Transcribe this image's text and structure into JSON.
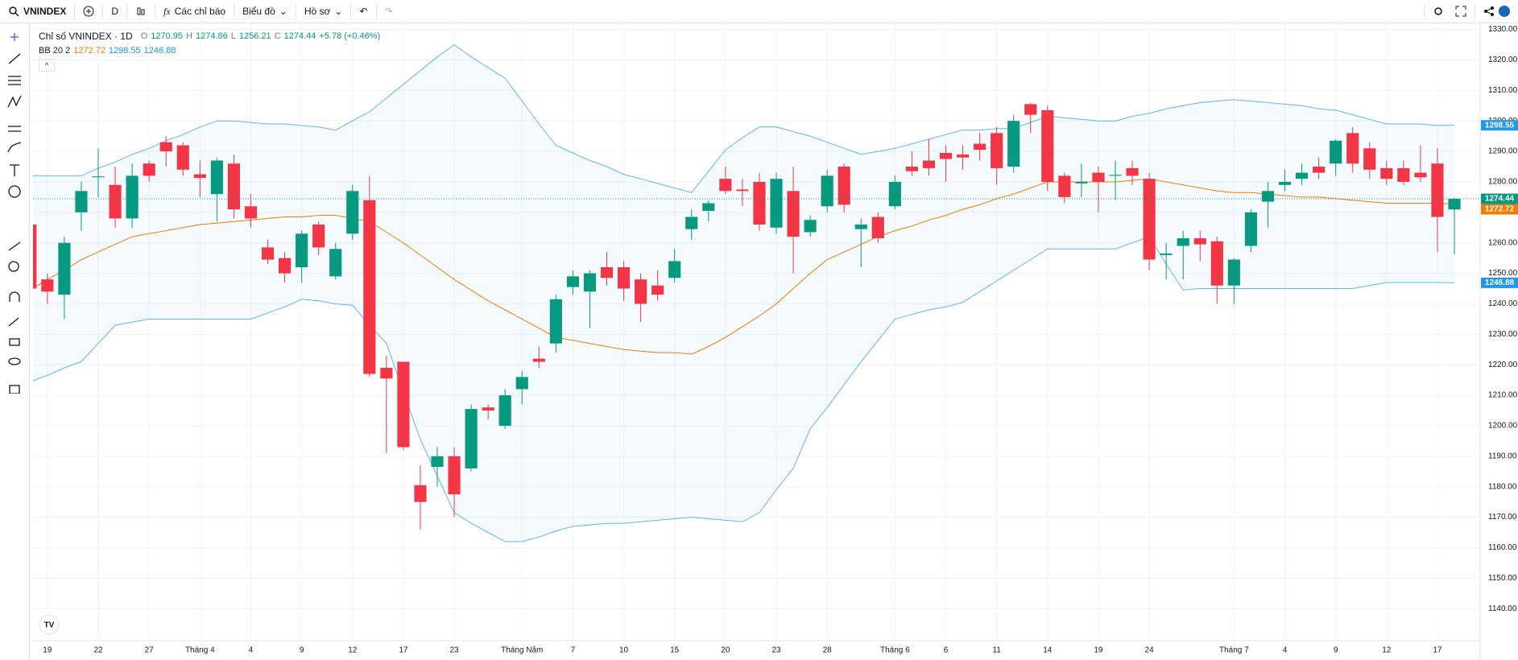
{
  "toolbar": {
    "symbol": "VNINDEX",
    "interval": "D",
    "indicators": "Các chỉ báo",
    "chart": "Biểu đồ",
    "profile": "Hồ sơ"
  },
  "chart_data": {
    "type": "candlestick",
    "title": "Chỉ số VNINDEX · 1D",
    "ohlc_labels": [
      "O",
      "H",
      "L",
      "C"
    ],
    "change": "+5.78 (+0.46%)",
    "categories": [
      null,
      "19",
      null,
      null,
      "22",
      null,
      null,
      "27",
      null,
      null,
      "Tháng 4",
      null,
      null,
      "4",
      null,
      null,
      "9",
      null,
      null,
      "12",
      null,
      null,
      "17",
      null,
      null,
      "23",
      null,
      null,
      null,
      "Tháng Năm",
      null,
      null,
      "7",
      null,
      null,
      "10",
      null,
      null,
      "15",
      null,
      null,
      "20",
      null,
      null,
      "23",
      null,
      null,
      "28",
      null,
      null,
      null,
      "Tháng 6",
      null,
      null,
      "6",
      null,
      null,
      "11",
      null,
      null,
      "14",
      null,
      null,
      "19",
      null,
      null,
      "24",
      null,
      null,
      null,
      null,
      "Tháng 7",
      null,
      null,
      "4",
      null,
      null,
      "9",
      null,
      null,
      "12",
      null,
      null,
      "17",
      null
    ],
    "open": [
      1266,
      1248,
      1243,
      1270,
      1281.5,
      1279,
      1268,
      1286,
      1293,
      1292,
      1282.5,
      1276,
      1286,
      1272,
      1258.5,
      1255,
      1252,
      1266,
      1249,
      1263,
      1274,
      1219,
      1221,
      1180.5,
      1186.5,
      1190,
      1186,
      1206,
      1200,
      1212,
      1222,
      1227,
      1245.5,
      1244,
      1252,
      1252,
      1248,
      1246,
      1248.5,
      1264.5,
      1270.5,
      1281,
      1277.5,
      1280,
      1265,
      1277,
      1263.5,
      1272,
      1285,
      1264.5,
      1268.5,
      1272,
      1285,
      1287,
      1289.5,
      1289,
      1292.5,
      1296,
      1285,
      1305.5,
      1303.5,
      1282,
      1279.5,
      1283,
      1282,
      1284.5,
      1281,
      1256,
      1259,
      1261.5,
      1260.5,
      1246,
      1259,
      1273.5,
      1279,
      1281,
      1285,
      1286,
      1296,
      1291,
      1284.5,
      1284.5,
      1283,
      1286,
      1270.95
    ],
    "high": [
      1266,
      1250,
      1262,
      1280,
      1291,
      1285,
      1286,
      1287,
      1295,
      1293,
      1287,
      1288,
      1289,
      1276,
      1261,
      1257,
      1264,
      1267,
      1260,
      1279,
      1282,
      1223,
      1221,
      1187,
      1193,
      1193,
      1207,
      1207,
      1212,
      1218,
      1226,
      1243,
      1251,
      1251,
      1257,
      1254,
      1250,
      1251,
      1258,
      1271,
      1274,
      1285,
      1281,
      1283,
      1283,
      1285,
      1269,
      1284,
      1286,
      1268,
      1270,
      1282,
      1290,
      1294,
      1292,
      1292,
      1296,
      1298,
      1302,
      1306,
      1305,
      1283,
      1286,
      1285,
      1287,
      1287,
      1283,
      1260,
      1264,
      1264,
      1262,
      1255,
      1271,
      1280,
      1284,
      1286,
      1288,
      1294,
      1298,
      1293,
      1287,
      1287,
      1292,
      1291,
      1274.86
    ],
    "low": [
      1243,
      1240,
      1235,
      1264,
      1275,
      1265,
      1265,
      1280,
      1285,
      1282,
      1275,
      1267,
      1268,
      1265,
      1253,
      1247,
      1247,
      1256,
      1248,
      1261,
      1216,
      1191,
      1192,
      1166,
      1180,
      1170,
      1185,
      1202,
      1199,
      1207,
      1219,
      1224,
      1243,
      1232,
      1246,
      1241,
      1234,
      1241,
      1247,
      1261,
      1267,
      1276,
      1272,
      1264,
      1263,
      1250,
      1262,
      1270,
      1270,
      1252,
      1260,
      1271,
      1282,
      1282,
      1280,
      1284,
      1287,
      1279,
      1283,
      1296,
      1277,
      1273,
      1275,
      1270,
      1274,
      1279,
      1251,
      1248,
      1248,
      1254,
      1240,
      1240,
      1257,
      1265,
      1277,
      1279,
      1281,
      1282,
      1283,
      1281,
      1279,
      1279,
      1280,
      1257,
      1256.21
    ],
    "close": [
      1245,
      1244,
      1260,
      1277,
      1281.8,
      1268,
      1282,
      1282,
      1290,
      1284,
      1281.3,
      1287,
      1271,
      1268,
      1254.5,
      1250,
      1263,
      1258.5,
      1258,
      1277,
      1217,
      1215.5,
      1193,
      1175,
      1190,
      1177.5,
      1205.5,
      1205,
      1210,
      1216,
      1221,
      1241.5,
      1249,
      1250,
      1248.5,
      1245,
      1240,
      1243,
      1254,
      1268.5,
      1273,
      1277,
      1277,
      1266,
      1281,
      1262,
      1267.5,
      1282,
      1272.5,
      1266,
      1261.5,
      1280,
      1283.5,
      1284.5,
      1287.5,
      1288,
      1290.5,
      1284.5,
      1300,
      1302,
      1280,
      1275,
      1280,
      1280,
      1282.3,
      1282,
      1254.5,
      1256.5,
      1261.5,
      1259.5,
      1246,
      1254.5,
      1270,
      1277,
      1280,
      1283,
      1283,
      1293.5,
      1286,
      1284,
      1281,
      1280,
      1281.5,
      1268.5,
      1274.44
    ],
    "up_color": "#089981",
    "down_color": "#f23645",
    "indicator": {
      "label": "BB 20 2",
      "middle_color": "#f57c00",
      "band_color": "#2196f3",
      "middle": [
        1244.5,
        1248,
        1251,
        1254.5,
        1257,
        1259.5,
        1262,
        1263,
        1264,
        1265,
        1266,
        1266.5,
        1267,
        1267.5,
        1268,
        1268.5,
        1268.5,
        1269,
        1269,
        1268,
        1267,
        1263.5,
        1260,
        1256,
        1252,
        1248,
        1244.5,
        1241,
        1238,
        1235,
        1232,
        1229,
        1228,
        1227,
        1226,
        1225,
        1224.5,
        1224,
        1224,
        1223.5,
        1226,
        1229,
        1232.5,
        1236,
        1240,
        1245,
        1250,
        1254.5,
        1257,
        1259.5,
        1262,
        1264,
        1265.5,
        1267.5,
        1269,
        1271,
        1272.5,
        1274.5,
        1276,
        1278,
        1280,
        1280,
        1280,
        1280,
        1280,
        1280.5,
        1281,
        1280,
        1279,
        1278,
        1277,
        1276.5,
        1276.5,
        1276,
        1275.5,
        1275,
        1275,
        1274.5,
        1274,
        1273.5,
        1273,
        1273,
        1273,
        1273,
        1272.72
      ],
      "upper": [
        1282,
        1282,
        1282,
        1282,
        1284.5,
        1286.5,
        1289,
        1291,
        1293.5,
        1295.5,
        1298,
        1300,
        1300,
        1299.5,
        1299,
        1299,
        1298.5,
        1298,
        1297,
        1300,
        1303,
        1307.5,
        1312,
        1316.5,
        1321,
        1325,
        1321,
        1317.5,
        1314,
        1306.5,
        1299,
        1292,
        1289.5,
        1287,
        1285,
        1282.5,
        1281,
        1279.5,
        1278,
        1276.5,
        1283.5,
        1290.5,
        1294.5,
        1298,
        1298,
        1296.5,
        1295,
        1293,
        1291,
        1289,
        1290,
        1291,
        1292.5,
        1294,
        1295.5,
        1297,
        1297,
        1297.5,
        1297.5,
        1299.5,
        1301.5,
        1301,
        1300.5,
        1300,
        1300,
        1301.5,
        1302.5,
        1304,
        1305,
        1306,
        1306.5,
        1307,
        1306.5,
        1306,
        1305.5,
        1305,
        1304,
        1303.5,
        1302,
        1300.5,
        1299,
        1299,
        1299,
        1298.5,
        1298.55
      ],
      "lower": [
        1214.5,
        1216.5,
        1219,
        1221,
        1227,
        1233,
        1234,
        1235,
        1235,
        1235,
        1235,
        1235,
        1235,
        1235,
        1237,
        1239,
        1241.5,
        1241,
        1240,
        1239.5,
        1233,
        1227,
        1211,
        1195.5,
        1183.5,
        1171.5,
        1168,
        1165,
        1162,
        1162,
        1163.5,
        1165.5,
        1167,
        1167.5,
        1168,
        1168,
        1168.5,
        1169,
        1169.5,
        1170,
        1169.5,
        1169,
        1168.5,
        1171.5,
        1179,
        1186,
        1199,
        1206,
        1213.5,
        1221,
        1228,
        1235,
        1236.5,
        1238,
        1239,
        1240.5,
        1244,
        1247.5,
        1251,
        1254.5,
        1258,
        1258,
        1258,
        1258,
        1258,
        1260,
        1262,
        1253,
        1244.5,
        1245,
        1245,
        1245,
        1245,
        1245,
        1245,
        1245,
        1245,
        1245,
        1245,
        1246,
        1247,
        1247,
        1247,
        1247,
        1246.88
      ]
    },
    "ylim": [
      1129.5,
      1332
    ],
    "yticks": [
      {
        "value": 1140,
        "label": "1140.00"
      },
      {
        "value": 1150,
        "label": "1150.00"
      },
      {
        "value": 1160,
        "label": "1160.00"
      },
      {
        "value": 1170,
        "label": "1170.00"
      },
      {
        "value": 1180,
        "label": "1180.00"
      },
      {
        "value": 1190,
        "label": "1190.00"
      },
      {
        "value": 1200,
        "label": "1200.00"
      },
      {
        "value": 1210,
        "label": "1210.00"
      },
      {
        "value": 1220,
        "label": "1220.00"
      },
      {
        "value": 1230,
        "label": "1230.00"
      },
      {
        "value": 1240,
        "label": "1240.00"
      },
      {
        "value": 1250,
        "label": "1250.00"
      },
      {
        "value": 1260,
        "label": "1260.00"
      },
      {
        "value": 1270,
        "label": "1270.00"
      },
      {
        "value": 1280,
        "label": "1280.00"
      },
      {
        "value": 1290,
        "label": "1290.00"
      },
      {
        "value": 1300,
        "label": "1300.00"
      },
      {
        "value": 1310,
        "label": "1310.00"
      },
      {
        "value": 1320,
        "label": "1320.00"
      },
      {
        "value": 1330,
        "label": "1330.00"
      }
    ],
    "grid": true
  }
}
